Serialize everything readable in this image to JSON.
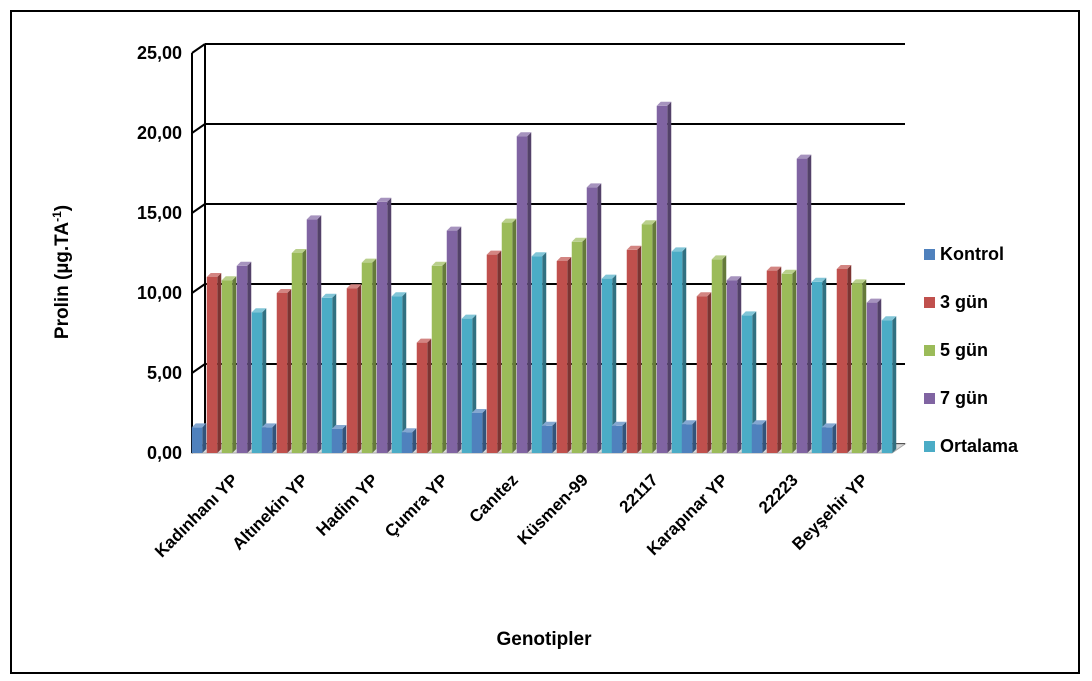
{
  "chart_data": {
    "type": "bar",
    "title": "",
    "xlabel": "Genotipler",
    "ylabel": "Prolin (µg.TA",
    "ylabel_sup": "-1",
    "ylabel_close": ")",
    "ylim": [
      0,
      25
    ],
    "yticks": [
      "0,00",
      "5,00",
      "10,00",
      "15,00",
      "20,00",
      "25,00"
    ],
    "ytick_values": [
      0,
      5,
      10,
      15,
      20,
      25
    ],
    "grid": true,
    "legend_position": "right",
    "categories": [
      "Kadınhanı YP",
      "Altınekin YP",
      "Hadim YP",
      "Çumra YP",
      "Canıtez",
      "Küsmen-99",
      "22117",
      "Karapınar YP",
      "22223",
      "Beyşehir YP"
    ],
    "series": [
      {
        "name": "Kontrol",
        "color": "#4f81bd",
        "values": [
          1.6,
          1.6,
          1.5,
          1.3,
          2.5,
          1.7,
          1.7,
          1.8,
          1.8,
          1.6
        ]
      },
      {
        "name": "3 gün",
        "color": "#c0504d",
        "values": [
          11.0,
          10.0,
          10.3,
          6.9,
          12.4,
          12.0,
          12.7,
          9.8,
          11.4,
          11.5
        ]
      },
      {
        "name": "5 gün",
        "color": "#9bbb59",
        "values": [
          10.8,
          12.5,
          11.9,
          11.7,
          14.4,
          13.2,
          14.3,
          12.1,
          11.2,
          10.6
        ]
      },
      {
        "name": "7 gün",
        "color": "#8064a2",
        "values": [
          11.7,
          14.6,
          15.7,
          13.9,
          19.8,
          16.6,
          21.7,
          10.8,
          18.4,
          9.4
        ]
      },
      {
        "name": "Ortalama",
        "color": "#4bacc6",
        "values": [
          8.8,
          9.7,
          9.8,
          8.4,
          12.3,
          10.9,
          12.6,
          8.6,
          10.7,
          8.3
        ]
      }
    ]
  }
}
